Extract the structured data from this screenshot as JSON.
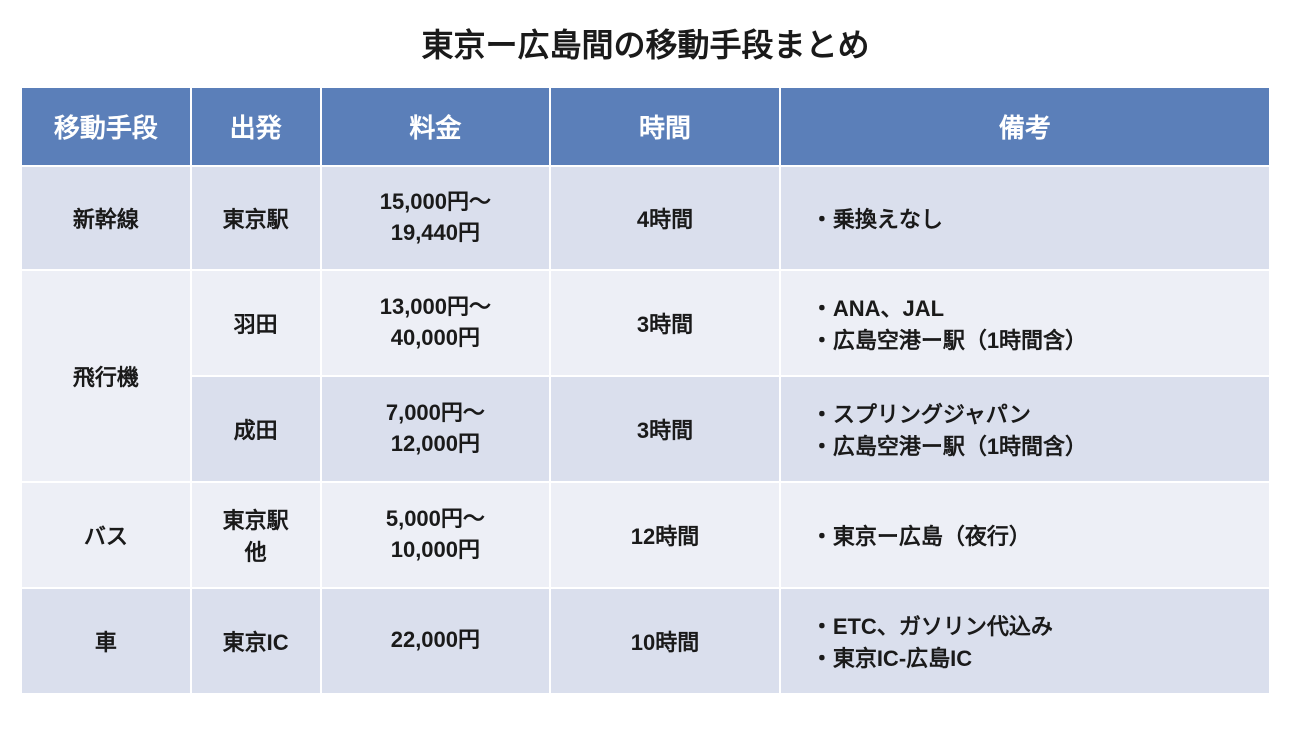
{
  "title": "東京ー広島間の移動手段まとめ",
  "headers": {
    "method": "移動手段",
    "depart": "出発",
    "price": "料金",
    "time": "時間",
    "notes": "備考"
  },
  "rows": [
    {
      "method": "新幹線",
      "depart": "東京駅",
      "price": "15,000円〜\n19,440円",
      "time": "4時間",
      "notes": "・乗換えなし",
      "rowspan_method": 1
    },
    {
      "method": "飛行機",
      "depart": "羽田",
      "price": "13,000円〜\n40,000円",
      "time": "3時間",
      "notes": "・ANA、JAL\n・広島空港ー駅（1時間含）",
      "rowspan_method": 2
    },
    {
      "method": "",
      "depart": "成田",
      "price": "7,000円〜\n12,000円",
      "time": "3時間",
      "notes": "・スプリングジャパン\n・広島空港ー駅（1時間含）",
      "rowspan_method": 0
    },
    {
      "method": "バス",
      "depart": "東京駅\n他",
      "price": "5,000円〜\n10,000円",
      "time": "12時間",
      "notes": "・東京ー広島（夜行）",
      "rowspan_method": 1
    },
    {
      "method": "車",
      "depart": "東京IC",
      "price": "22,000円",
      "time": "10時間",
      "notes": "・ETC、ガソリン代込み\n・東京IC-広島IC",
      "rowspan_method": 1
    }
  ],
  "styling": {
    "header_bg": "#5b7fb9",
    "header_text": "#ffffff",
    "row_odd_bg": "#dadfed",
    "row_even_bg": "#edeff6",
    "border_color": "#ffffff",
    "title_fontsize": 32,
    "header_fontsize": 26,
    "cell_fontsize": 22,
    "col_widths": {
      "method": 170,
      "depart": 130,
      "price": 230,
      "time": 230,
      "notes": 491
    }
  }
}
